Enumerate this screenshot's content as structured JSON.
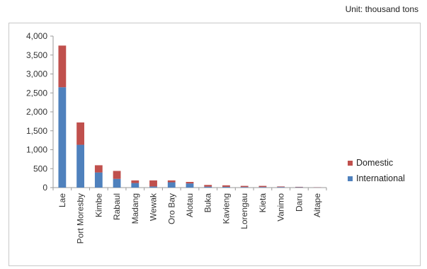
{
  "unit_note": "Unit: thousand tons",
  "colors": {
    "Domestic": "#c0504d",
    "International": "#4f81bd"
  },
  "chart_data": {
    "type": "bar",
    "stacked": true,
    "categories": [
      "Lae",
      "Port Moresby",
      "Kimbe",
      "Rabaul",
      "Madang",
      "Wewak",
      "Oro Bay",
      "Alotau",
      "Buka",
      "Kavieng",
      "Lorengau",
      "Kieta",
      "Vanimo",
      "Daru",
      "Aitape"
    ],
    "series": [
      {
        "name": "International",
        "values": [
          2650,
          1130,
          400,
          230,
          120,
          30,
          140,
          110,
          25,
          20,
          15,
          15,
          15,
          10,
          5
        ]
      },
      {
        "name": "Domestic",
        "values": [
          1100,
          590,
          190,
          210,
          70,
          160,
          50,
          40,
          45,
          40,
          30,
          30,
          15,
          10,
          5
        ]
      }
    ],
    "yticks": [
      "0",
      "500",
      "1,000",
      "1,500",
      "2,000",
      "2,500",
      "3,000",
      "3,500",
      "4,000"
    ],
    "ylim": [
      0,
      4000
    ],
    "grid": false,
    "legend_position": "right",
    "legend": [
      "Domestic",
      "International"
    ]
  }
}
